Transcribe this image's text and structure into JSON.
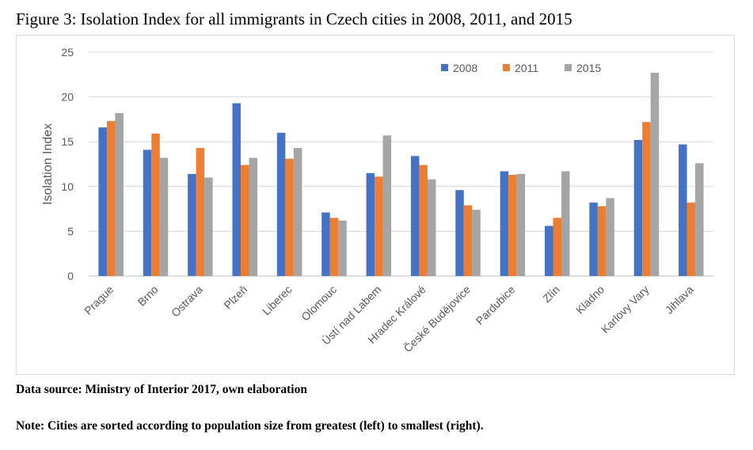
{
  "figure": {
    "title": "Figure 3: Isolation Index for all immigrants in Czech cities in 2008, 2011, and 2015",
    "source": "Data source: Ministry of Interior 2017, own elaboration",
    "note": "Note: Cities are sorted according to population size from greatest (left) to smallest (right)."
  },
  "chart_data": {
    "type": "bar",
    "title": "",
    "xlabel": "",
    "ylabel": "Isolation Index",
    "ylim": [
      0,
      25
    ],
    "yticks": [
      0,
      5,
      10,
      15,
      20,
      25
    ],
    "grid": true,
    "legend_position": "top-right",
    "categories": [
      "Prague",
      "Brno",
      "Ostrava",
      "Plzeň",
      "Liberec",
      "Olomouc",
      "Ústí nad Labem",
      "Hradec Králové",
      "České Budějovice",
      "Pardubice",
      "Zlín",
      "Kladno",
      "Karlovy Vary",
      "Jihlava"
    ],
    "series": [
      {
        "name": "2008",
        "color": "#4472c4",
        "values": [
          16.6,
          14.1,
          11.4,
          19.3,
          16.0,
          7.1,
          11.5,
          13.4,
          9.6,
          11.7,
          5.6,
          8.2,
          15.2,
          14.7
        ]
      },
      {
        "name": "2011",
        "color": "#ed7d31",
        "values": [
          17.3,
          15.9,
          14.3,
          12.4,
          13.1,
          6.5,
          11.1,
          12.4,
          7.9,
          11.3,
          6.5,
          7.8,
          17.2,
          8.2
        ]
      },
      {
        "name": "2015",
        "color": "#a5a5a5",
        "values": [
          18.2,
          13.2,
          11.0,
          13.2,
          14.3,
          6.2,
          15.7,
          10.8,
          7.4,
          11.4,
          11.7,
          8.7,
          22.7,
          12.6
        ]
      }
    ]
  }
}
